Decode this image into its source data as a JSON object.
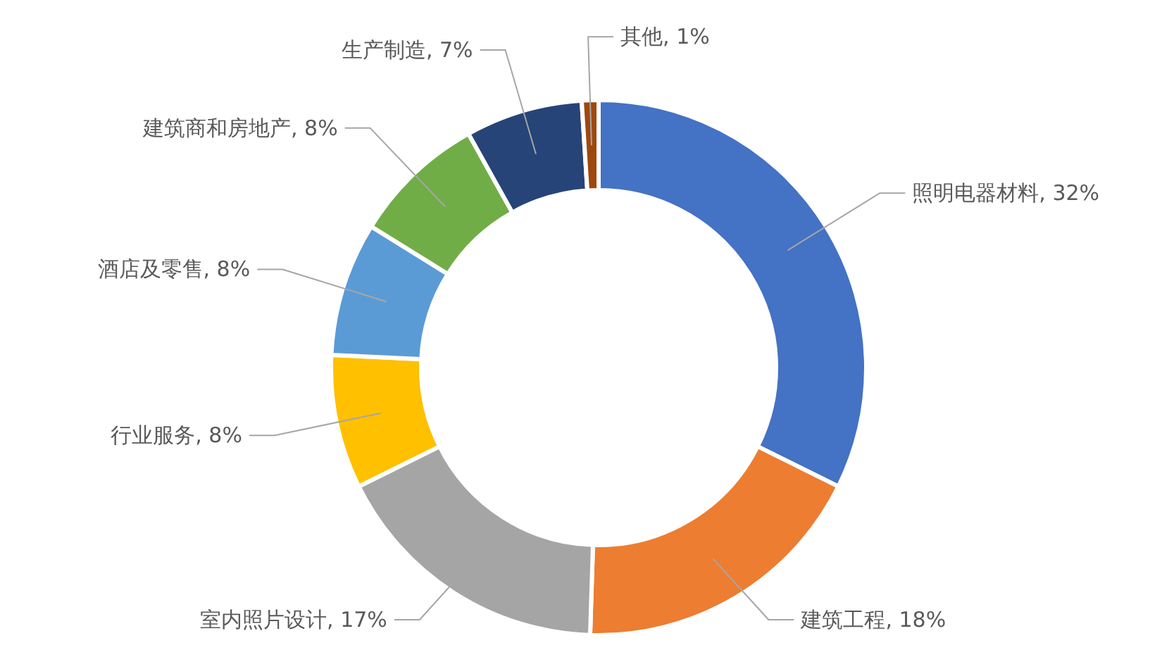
{
  "chart_data": {
    "type": "donut",
    "categories": [
      "照明电器材料",
      "建筑工程",
      "室内照片设计",
      "行业服务",
      "酒店及零售",
      "建筑商和房地产",
      "生产制造",
      "其他"
    ],
    "values": [
      32,
      18,
      17,
      8,
      8,
      8,
      7,
      1
    ],
    "colors": [
      "#4472c4",
      "#ed7d31",
      "#a5a5a5",
      "#ffc000",
      "#5b9bd5",
      "#70ad47",
      "#264478",
      "#9e480e"
    ],
    "value_labels": [
      "32%",
      "18%",
      "17%",
      "8%",
      "8%",
      "8%",
      "7%",
      "1%"
    ]
  }
}
